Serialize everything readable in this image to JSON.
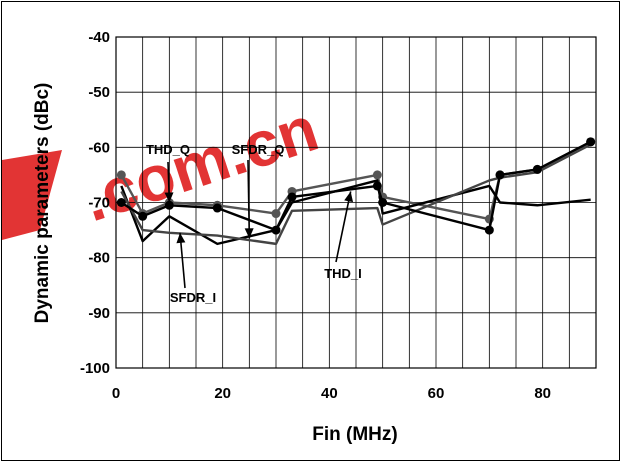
{
  "chart_data": {
    "type": "line",
    "xlabel": "Fin (MHz)",
    "ylabel": "Dynamic parameters (dBc)",
    "xlim": [
      0,
      90
    ],
    "ylim": [
      -100,
      -40
    ],
    "x_ticks": [
      0,
      20,
      40,
      60,
      80
    ],
    "y_ticks": [
      -40,
      -50,
      -60,
      -70,
      -80,
      -90,
      -100
    ],
    "grid": true,
    "colors": {
      "thd_q": "#555555",
      "sfdr_q": "#000000",
      "sfdr_i": "#444444",
      "thd_i": "#000000",
      "grid": "#000000",
      "watermark": "#dd1111"
    },
    "series": [
      {
        "name": "THD_Q",
        "x": [
          1,
          5,
          10,
          19,
          30,
          33,
          49,
          50,
          70,
          72,
          79,
          89
        ],
        "y": [
          -65,
          -72,
          -70,
          -70.5,
          -72,
          -68,
          -65,
          -69,
          -73,
          -65,
          -64,
          -59
        ]
      },
      {
        "name": "SFDR_Q",
        "x": [
          1,
          5,
          10,
          19,
          30,
          33,
          49,
          50,
          70,
          72,
          79,
          89
        ],
        "y": [
          -67,
          -77,
          -72.5,
          -77.5,
          -75,
          -70,
          -66,
          -72,
          -67,
          -70,
          -70.5,
          -69.5
        ]
      },
      {
        "name": "SFDR_I",
        "x": [
          1,
          5,
          10,
          19,
          30,
          33,
          49,
          50,
          70,
          72,
          79,
          89
        ],
        "y": [
          -68,
          -75,
          -75.5,
          -76,
          -77.5,
          -71.5,
          -71,
          -74,
          -66,
          -65.5,
          -64.5,
          -59.5
        ]
      },
      {
        "name": "THD_I",
        "x": [
          1,
          5,
          10,
          19,
          30,
          33,
          49,
          50,
          70,
          72,
          79,
          89
        ],
        "y": [
          -70,
          -72.5,
          -70.5,
          -71,
          -75,
          -69,
          -67,
          -70,
          -75,
          -65,
          -64,
          -59
        ]
      }
    ],
    "markers_on": [
      "THD_Q",
      "THD_I"
    ],
    "annotations": [
      {
        "text": "THD_Q",
        "target_series": "THD_Q",
        "target_x": 10,
        "target_y": -70
      },
      {
        "text": "SFDR_Q",
        "target_series": "SFDR_Q",
        "target_x": 25,
        "target_y": -76.5
      },
      {
        "text": "SFDR_I",
        "target_series": "SFDR_I",
        "target_x": 12,
        "target_y": -75.5
      },
      {
        "text": "THD_I",
        "target_series": "THD_I",
        "target_x": 44,
        "target_y": -68
      }
    ]
  },
  "watermark": {
    "text": ".com.cn"
  }
}
